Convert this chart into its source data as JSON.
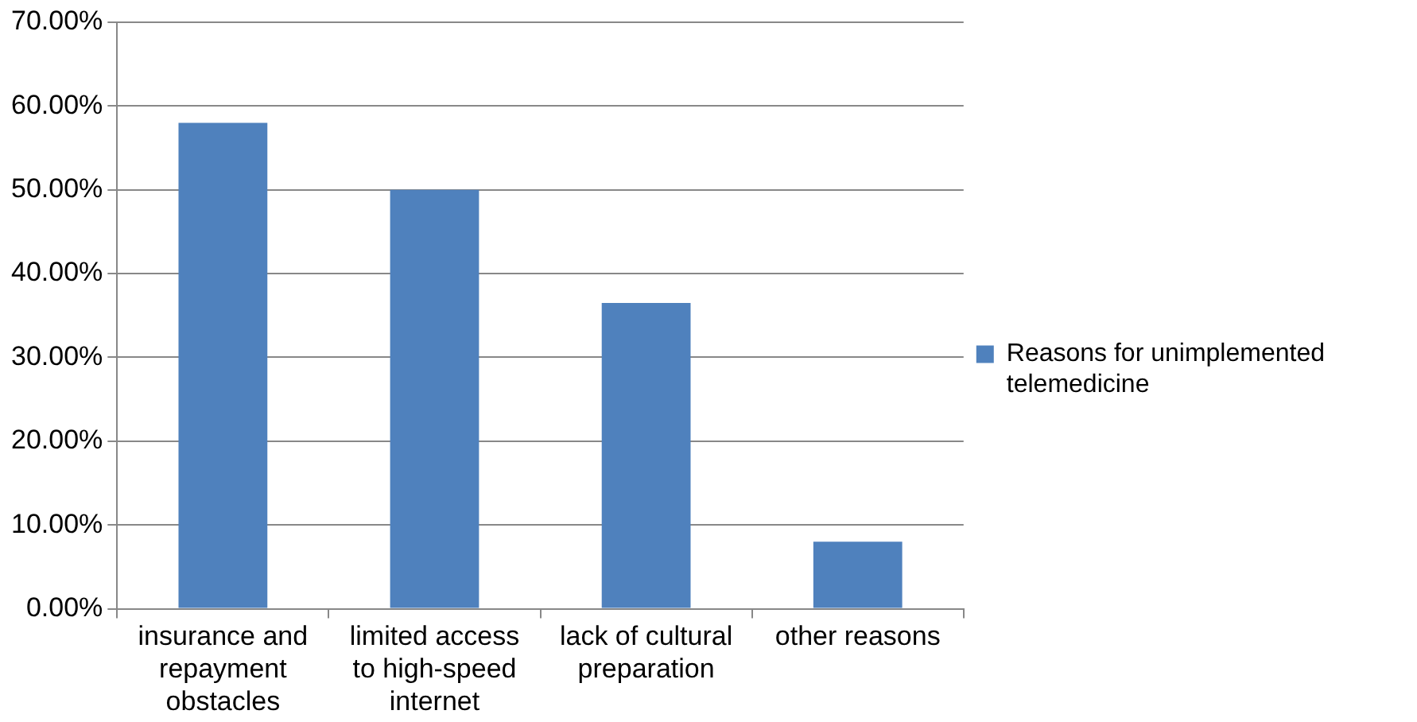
{
  "chart_data": {
    "type": "bar",
    "categories": [
      "insurance and repayment obstacles",
      "limited access to high-speed internet",
      "lack of cultural preparation",
      "other reasons"
    ],
    "series": [
      {
        "name": "Reasons for unimplemented telemedicine",
        "color": "#4f81bd",
        "values": [
          58,
          50,
          36.5,
          8
        ]
      }
    ],
    "ylim": [
      0,
      70
    ],
    "yticks": [
      {
        "value": 0,
        "label": "0.00%"
      },
      {
        "value": 10,
        "label": "10.00%"
      },
      {
        "value": 20,
        "label": "20.00%"
      },
      {
        "value": 30,
        "label": "30.00%"
      },
      {
        "value": 40,
        "label": "40.00%"
      },
      {
        "value": 50,
        "label": "50.00%"
      },
      {
        "value": 60,
        "label": "60.00%"
      },
      {
        "value": 70,
        "label": "70.00%"
      }
    ],
    "grid": "y",
    "legend": "right"
  }
}
